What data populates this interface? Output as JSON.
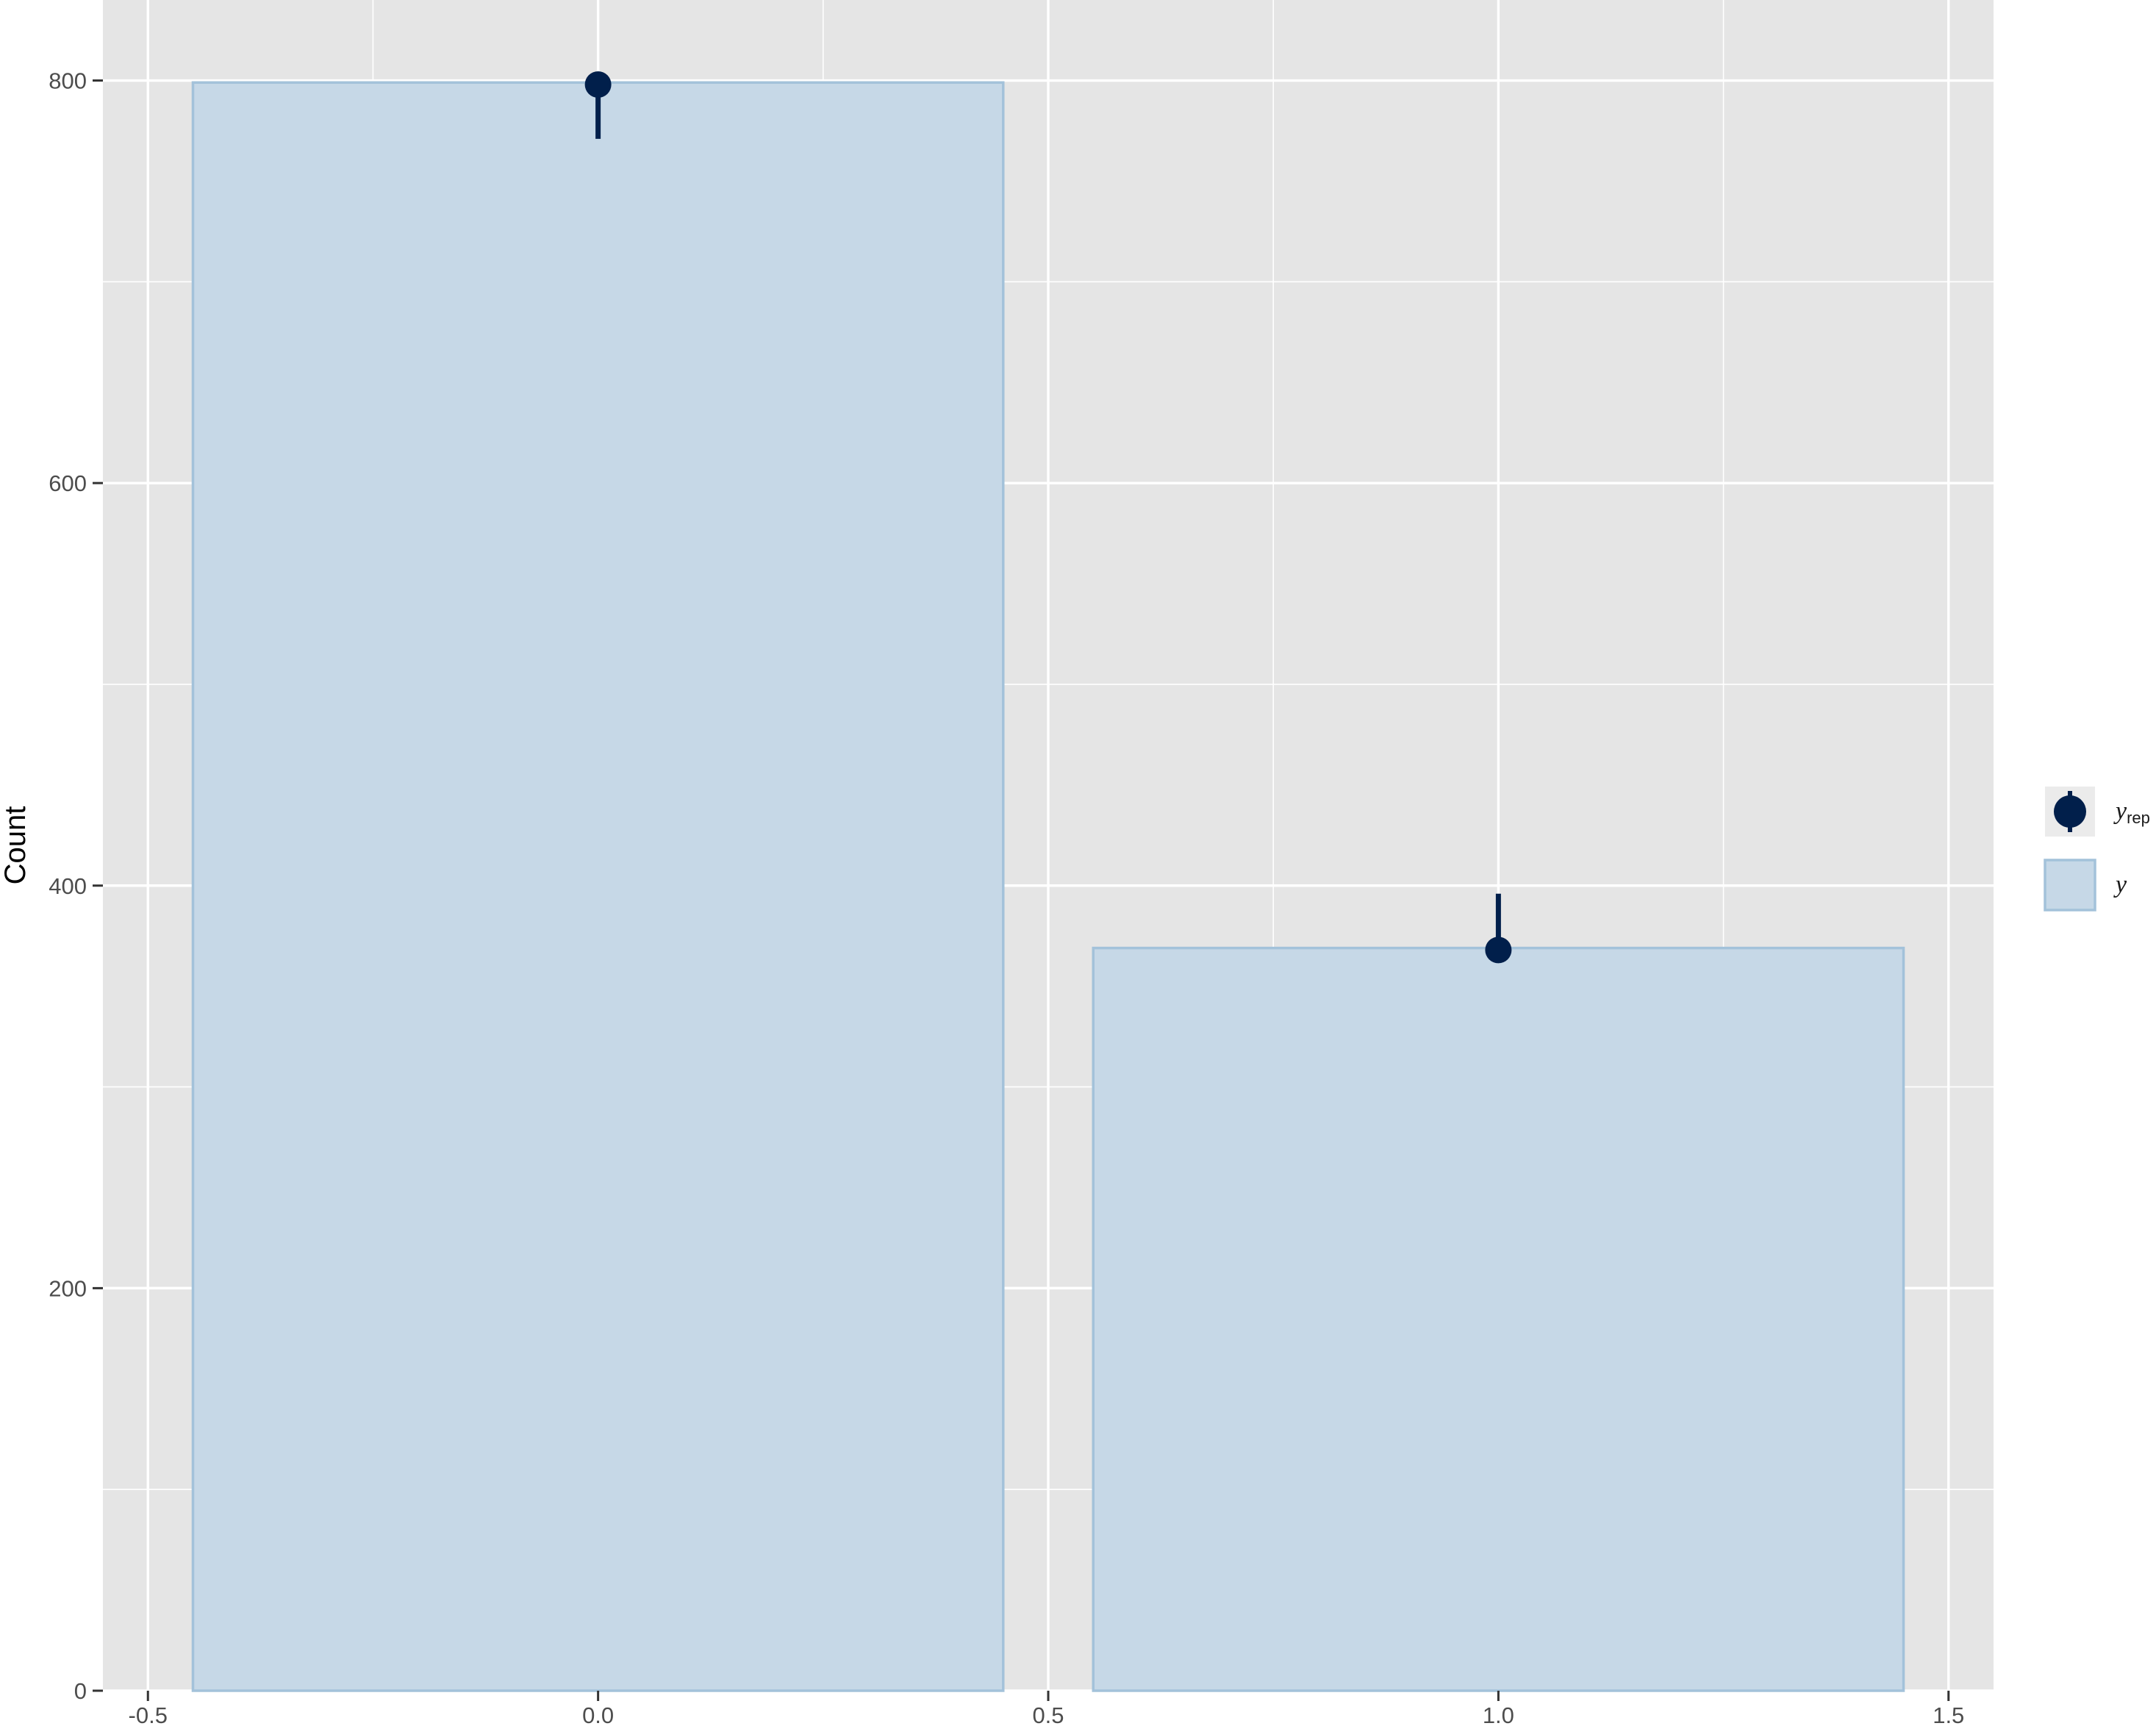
{
  "chart_data": {
    "type": "bar",
    "title": "",
    "xlabel": "",
    "ylabel": "Count",
    "xlim": [
      -0.55,
      1.55
    ],
    "ylim": [
      0,
      840
    ],
    "x_ticks": [
      -0.5,
      0.0,
      0.5,
      1.0,
      1.5
    ],
    "x_tick_labels": [
      "-0.5",
      "0.0",
      "0.5",
      "1.0",
      "1.5"
    ],
    "y_ticks": [
      0,
      200,
      400,
      600,
      800
    ],
    "y_tick_labels": [
      "0",
      "200",
      "400",
      "600",
      "800"
    ],
    "grid": true,
    "bar_width": 0.9,
    "bars": {
      "name": "y",
      "x": [
        0,
        1
      ],
      "values": [
        799,
        369
      ]
    },
    "points": {
      "name": "y_rep",
      "x": [
        0,
        1
      ],
      "y": [
        798,
        368
      ],
      "lower": [
        771,
        368
      ],
      "upper": [
        798,
        396
      ]
    },
    "legend": {
      "position": "right",
      "entries": [
        {
          "key": "point",
          "label": "y",
          "subscript": "rep"
        },
        {
          "key": "bar",
          "label": "y",
          "subscript": ""
        }
      ]
    },
    "colors": {
      "panel_background": "#e5e5e5",
      "grid_major": "#ffffff",
      "bar_fill": "#c6d8e7",
      "bar_stroke": "#a3c2da",
      "point": "#011f4b"
    }
  }
}
